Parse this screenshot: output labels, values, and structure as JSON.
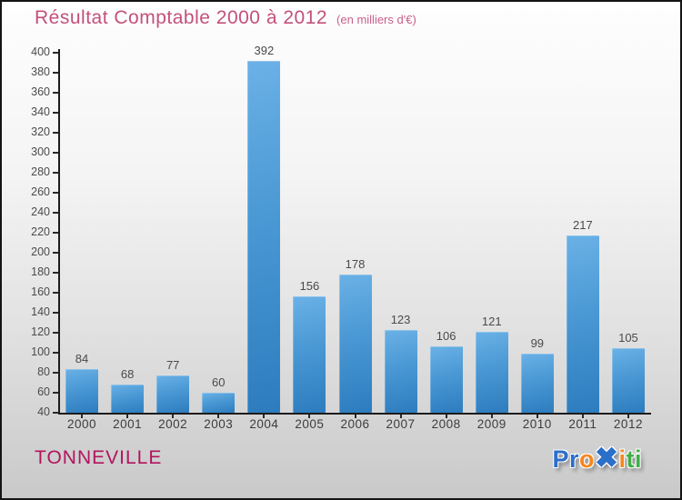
{
  "header": {
    "title": "Résultat Comptable 2000 à 2012",
    "subtitle": "(en milliers d'€)"
  },
  "chart_data": {
    "type": "bar",
    "title": "Résultat Comptable 2000 à 2012",
    "subtitle": "(en milliers d'€)",
    "categories": [
      "2000",
      "2001",
      "2002",
      "2003",
      "2004",
      "2005",
      "2006",
      "2007",
      "2008",
      "2009",
      "2010",
      "2011",
      "2012"
    ],
    "values": [
      84,
      68,
      77,
      60,
      392,
      156,
      178,
      123,
      106,
      121,
      99,
      217,
      105
    ],
    "ylim": [
      40,
      400
    ],
    "ytick_step": 20,
    "grid": false,
    "legend": false,
    "bar_color_top": "#6ab1e6",
    "bar_color_bottom": "#2d7cbe",
    "axis_color": "#1c1c1c",
    "label_color": "#4a4a4a"
  },
  "footer": {
    "place": "TONNEVILLE",
    "place_color": "#b2145e",
    "logo": {
      "brand": "Proxiti",
      "letters": [
        {
          "ch": "P",
          "color": "#2a6fc9"
        },
        {
          "ch": "r",
          "color": "#2a6fc9"
        },
        {
          "ch": "o",
          "color": "#f5871f"
        },
        {
          "ch": "✖",
          "color": "#2a6fc9"
        },
        {
          "ch": "i",
          "color": "#f5871f"
        },
        {
          "ch": "t",
          "color": "#3faf46"
        },
        {
          "ch": "i",
          "color": "#3faf46"
        }
      ]
    }
  }
}
